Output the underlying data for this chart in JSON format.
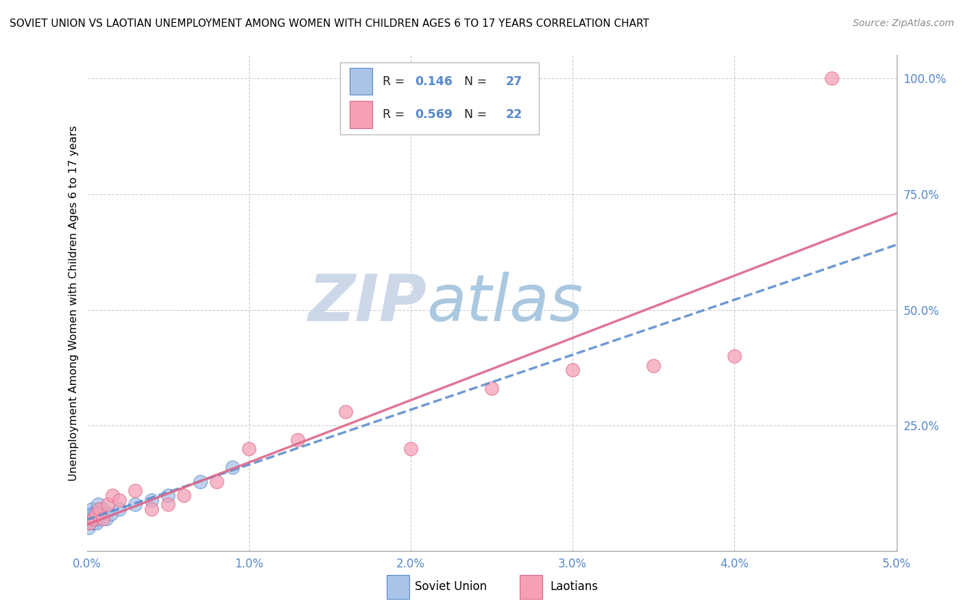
{
  "title": "SOVIET UNION VS LAOTIAN UNEMPLOYMENT AMONG WOMEN WITH CHILDREN AGES 6 TO 17 YEARS CORRELATION CHART",
  "source": "Source: ZipAtlas.com",
  "ylabel": "Unemployment Among Women with Children Ages 6 to 17 years",
  "legend_label1": "Soviet Union",
  "legend_label2": "Laotians",
  "R1": 0.146,
  "N1": 27,
  "R2": 0.569,
  "N2": 22,
  "color1": "#aac4e8",
  "color2": "#f5a0b5",
  "trendline1_color": "#5588cc",
  "trendline2_color": "#dd6688",
  "watermark_zip_color": "#ccd8e8",
  "watermark_atlas_color": "#aac8e0",
  "background_color": "#ffffff",
  "grid_color": "#cccccc",
  "xlim": [
    0.0,
    0.05
  ],
  "ylim": [
    -0.02,
    1.05
  ],
  "ytick_positions": [
    0.25,
    0.5,
    0.75,
    1.0
  ],
  "ytick_labels": [
    "25.0%",
    "50.0%",
    "75.0%",
    "100.0%"
  ],
  "xtick_positions": [
    0.0,
    0.01,
    0.02,
    0.03,
    0.04,
    0.05
  ],
  "xtick_labels": [
    "0.0%",
    "1.0%",
    "2.0%",
    "3.0%",
    "4.0%",
    "5.0%"
  ],
  "soviet_x": [
    5e-05,
    0.0001,
    0.00015,
    0.0002,
    0.00022,
    0.00025,
    0.0003,
    0.00032,
    0.00035,
    0.0004,
    0.00045,
    0.0005,
    0.00055,
    0.0006,
    0.00065,
    0.0007,
    0.00075,
    0.0008,
    0.001,
    0.0012,
    0.0015,
    0.002,
    0.003,
    0.004,
    0.005,
    0.007,
    0.009
  ],
  "soviet_y": [
    0.04,
    0.03,
    0.05,
    0.06,
    0.05,
    0.04,
    0.07,
    0.05,
    0.06,
    0.04,
    0.05,
    0.06,
    0.05,
    0.04,
    0.07,
    0.08,
    0.05,
    0.06,
    0.07,
    0.05,
    0.06,
    0.07,
    0.08,
    0.09,
    0.1,
    0.13,
    0.16
  ],
  "laotian_x": [
    0.0002,
    0.0004,
    0.0006,
    0.0008,
    0.001,
    0.0013,
    0.0016,
    0.002,
    0.003,
    0.004,
    0.005,
    0.006,
    0.008,
    0.01,
    0.013,
    0.016,
    0.02,
    0.025,
    0.03,
    0.035,
    0.04,
    0.046
  ],
  "laotian_y": [
    0.04,
    0.05,
    0.06,
    0.07,
    0.05,
    0.08,
    0.1,
    0.09,
    0.11,
    0.07,
    0.08,
    0.1,
    0.13,
    0.2,
    0.22,
    0.28,
    0.2,
    0.33,
    0.37,
    0.38,
    0.4,
    1.0
  ]
}
